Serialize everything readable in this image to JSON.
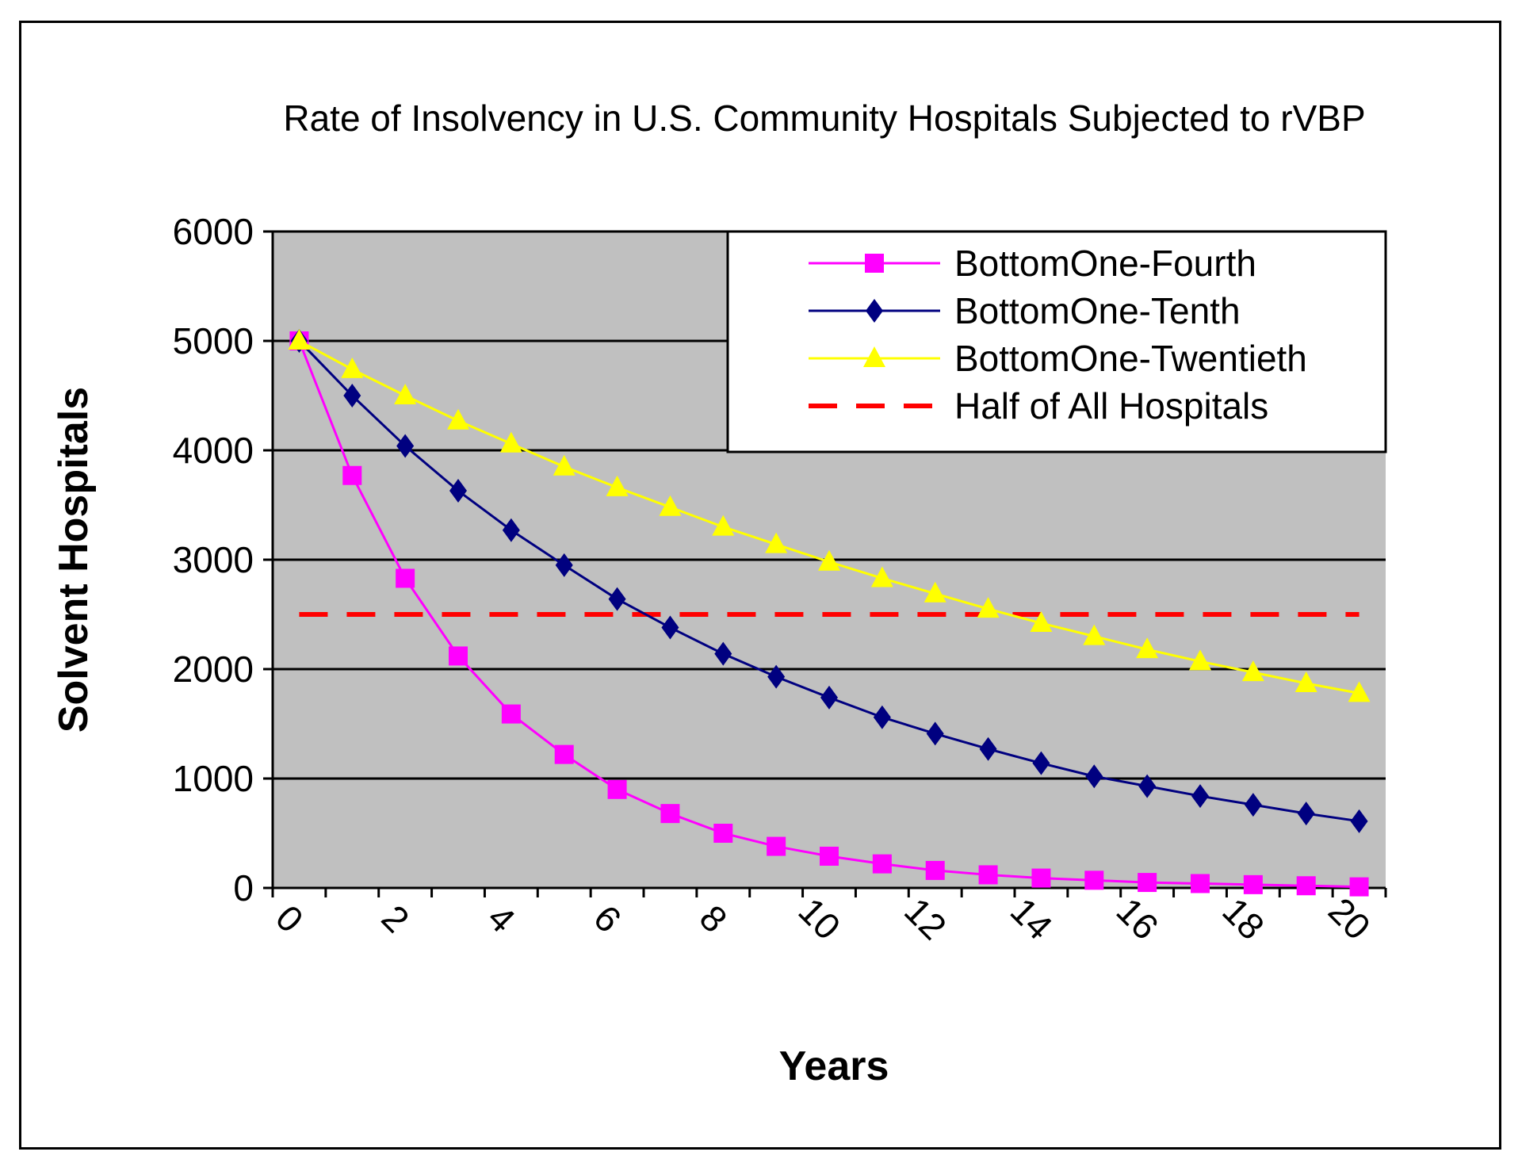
{
  "chart_data": {
    "type": "line",
    "title": "Rate of Insolvency in U.S. Community Hospitals Subjected to rVBP",
    "xlabel": "Years",
    "ylabel": "Solvent Hospitals",
    "ylim": [
      0,
      6000
    ],
    "y_ticks": [
      "0",
      "1000",
      "2000",
      "3000",
      "4000",
      "5000",
      "6000"
    ],
    "x_ticks": [
      "0",
      "2",
      "4",
      "6",
      "8",
      "10",
      "12",
      "14",
      "16",
      "18",
      "20"
    ],
    "x": [
      0,
      1,
      2,
      3,
      4,
      5,
      6,
      7,
      8,
      9,
      10,
      11,
      12,
      13,
      14,
      15,
      16,
      17,
      18,
      19,
      20
    ],
    "grid": true,
    "legend_position": "top-right",
    "plot_background": "#c0c0c0",
    "series": [
      {
        "name": "BottomOne-Fourth",
        "color": "#ff00ff",
        "marker": "square",
        "values": [
          5000,
          3770,
          2830,
          2120,
          1590,
          1220,
          900,
          680,
          500,
          380,
          290,
          220,
          160,
          120,
          90,
          70,
          50,
          40,
          30,
          20,
          10
        ]
      },
      {
        "name": "BottomOne-Tenth",
        "color": "#000080",
        "marker": "diamond",
        "values": [
          5000,
          4500,
          4040,
          3630,
          3270,
          2950,
          2640,
          2380,
          2140,
          1930,
          1740,
          1560,
          1410,
          1270,
          1140,
          1020,
          930,
          840,
          760,
          680,
          610
        ]
      },
      {
        "name": "BottomOne-Twentieth",
        "color": "#ffff00",
        "marker": "triangle",
        "values": [
          5000,
          4740,
          4500,
          4270,
          4060,
          3850,
          3660,
          3480,
          3300,
          3140,
          2980,
          2830,
          2690,
          2550,
          2420,
          2300,
          2180,
          2070,
          1970,
          1870,
          1780
        ]
      },
      {
        "name": "Half of All Hospitals",
        "color": "#ff0000",
        "marker": "none",
        "dashed": true,
        "values": [
          2500,
          2500,
          2500,
          2500,
          2500,
          2500,
          2500,
          2500,
          2500,
          2500,
          2500,
          2500,
          2500,
          2500,
          2500,
          2500,
          2500,
          2500,
          2500,
          2500,
          2500
        ]
      }
    ]
  }
}
